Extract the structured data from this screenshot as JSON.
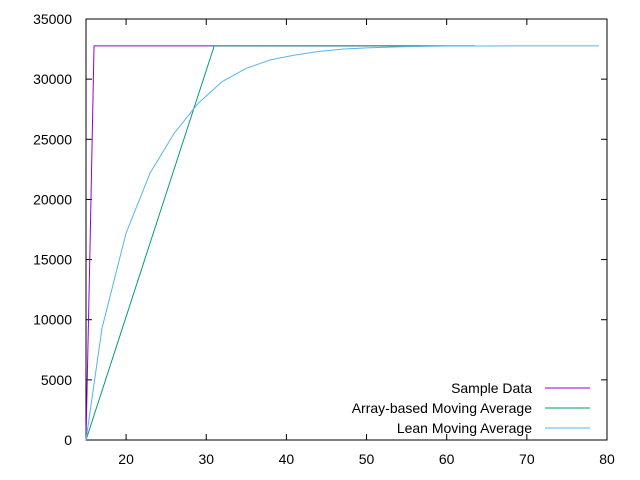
{
  "chart_data": {
    "type": "line",
    "title": "",
    "xlabel": "",
    "ylabel": "",
    "xlim": [
      15,
      80
    ],
    "ylim": [
      0,
      35000
    ],
    "xticks": [
      20,
      30,
      40,
      50,
      60,
      70,
      80
    ],
    "yticks": [
      0,
      5000,
      10000,
      15000,
      20000,
      25000,
      30000,
      35000
    ],
    "grid": false,
    "legend_position": "bottom-right",
    "series": [
      {
        "name": "Sample Data",
        "color": "#9400d3",
        "x": [
          15,
          15.5,
          16,
          17,
          20,
          30,
          40,
          50,
          63.5
        ],
        "y": [
          0,
          16000,
          32767,
          32767,
          32767,
          32767,
          32767,
          32767,
          32767
        ]
      },
      {
        "name": "Array-based Moving Average",
        "color": "#009e73",
        "x": [
          15,
          20,
          25,
          31,
          35,
          40,
          50,
          63.5
        ],
        "y": [
          0,
          10240,
          20480,
          32767,
          32767,
          32767,
          32767,
          32767
        ]
      },
      {
        "name": "Lean Moving Average",
        "color": "#56b4e9",
        "x": [
          15,
          17,
          20,
          23,
          26,
          29,
          32,
          35,
          38,
          41,
          44,
          47,
          50,
          55,
          60,
          65,
          70,
          75,
          79
        ],
        "y": [
          0,
          9300,
          17200,
          22200,
          25500,
          28000,
          29800,
          30900,
          31600,
          32000,
          32300,
          32500,
          32600,
          32700,
          32750,
          32760,
          32765,
          32767,
          32767
        ]
      }
    ]
  }
}
